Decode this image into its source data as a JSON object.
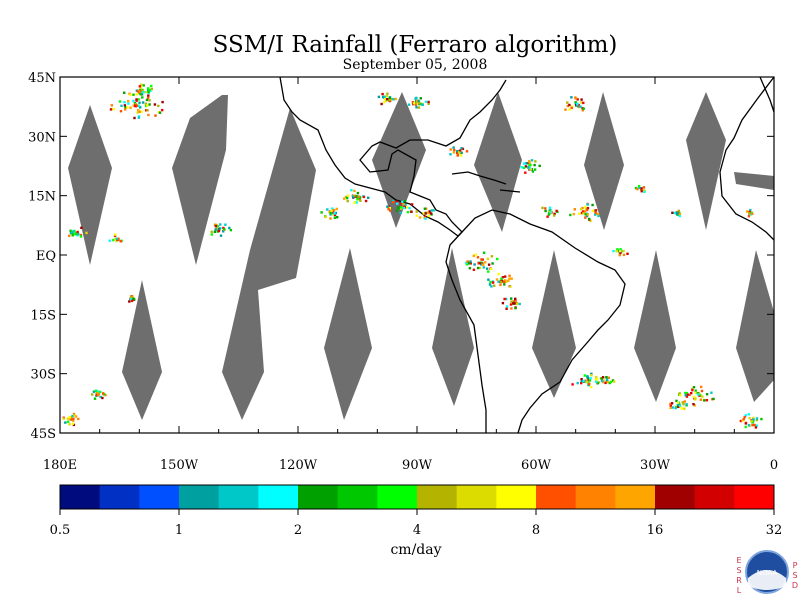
{
  "title": "SSM/I Rainfall (Ferraro algorithm)",
  "subtitle": "September 05, 2008",
  "map": {
    "lon_range": [
      -180,
      0
    ],
    "lat_range": [
      -45,
      45
    ],
    "lat_ticks": [
      {
        "value": 45,
        "label": "45N"
      },
      {
        "value": 30,
        "label": "30N"
      },
      {
        "value": 15,
        "label": "15N"
      },
      {
        "value": 0,
        "label": "EQ"
      },
      {
        "value": -15,
        "label": "15S"
      },
      {
        "value": -30,
        "label": "30S"
      },
      {
        "value": -45,
        "label": "45S"
      }
    ],
    "lon_ticks": [
      {
        "value": -180,
        "label": "180E"
      },
      {
        "value": -150,
        "label": "150W"
      },
      {
        "value": -120,
        "label": "120W"
      },
      {
        "value": -90,
        "label": "90W"
      },
      {
        "value": -60,
        "label": "60W"
      },
      {
        "value": -30,
        "label": "30W"
      },
      {
        "value": 0,
        "label": "0"
      }
    ],
    "no_data_color": "#6e6e6e",
    "coast_color": "#000000"
  },
  "colorbar": {
    "unit": "cm/day",
    "colors": [
      "#000c7d",
      "#0030c4",
      "#0050ff",
      "#00a0a0",
      "#00c8c8",
      "#00ffff",
      "#00a000",
      "#00c800",
      "#00ff00",
      "#b4b400",
      "#dcdc00",
      "#ffff00",
      "#ff5000",
      "#ff8200",
      "#ffa500",
      "#a00000",
      "#d20000",
      "#ff0000"
    ],
    "tick_labels": [
      "0.5",
      "1",
      "2",
      "4",
      "8",
      "16",
      "32"
    ]
  },
  "logo": {
    "name": "noaa-logo",
    "text": "NOAA",
    "left_letters": [
      "E",
      "S",
      "R",
      "L"
    ],
    "right_letters": [
      "P",
      "S",
      "D"
    ]
  }
}
